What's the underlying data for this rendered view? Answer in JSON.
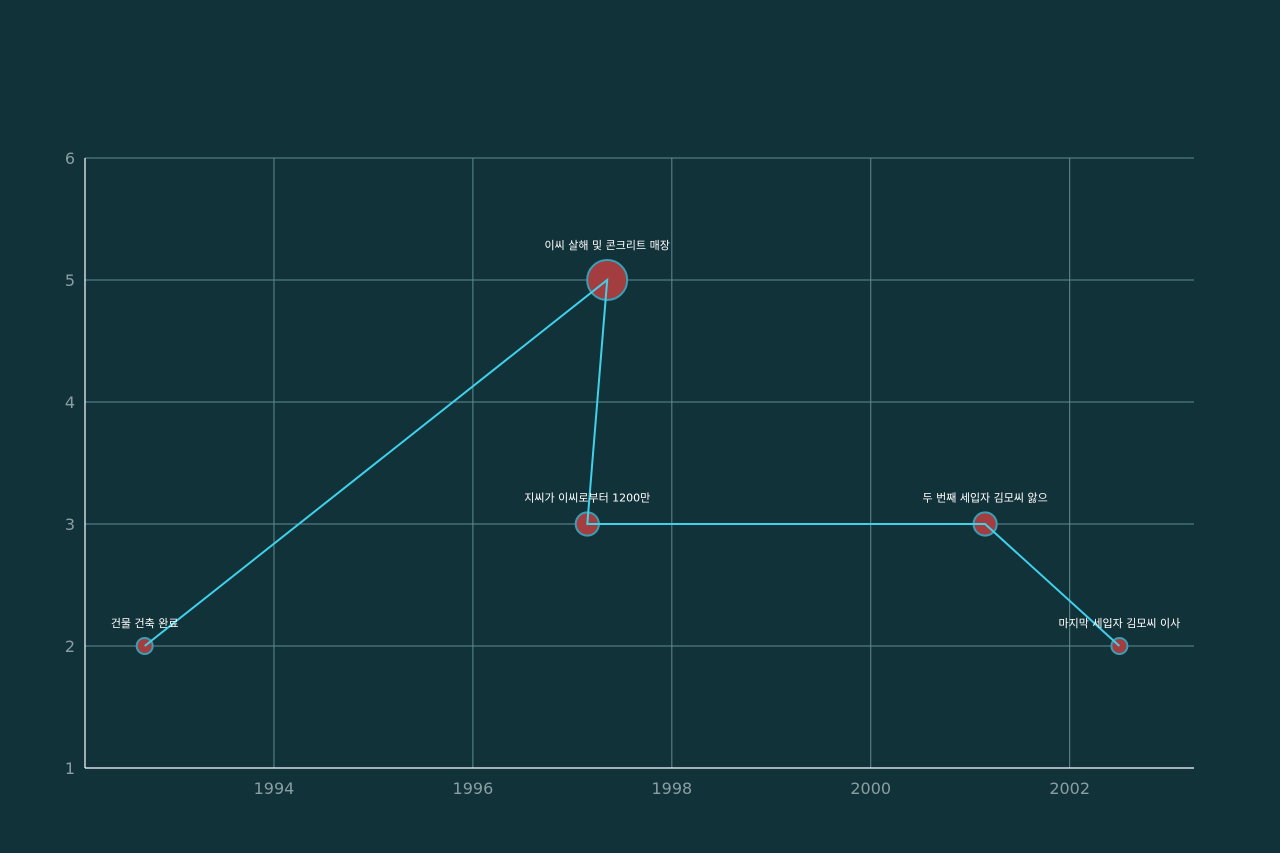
{
  "chart_data": {
    "type": "scatter",
    "title": "",
    "xlabel": "",
    "ylabel": "",
    "xlim": [
      1992.1,
      2003.25
    ],
    "ylim": [
      1,
      6
    ],
    "x_ticks": [
      1994,
      1996,
      1998,
      2000,
      2002
    ],
    "y_ticks": [
      1,
      2,
      3,
      4,
      5,
      6
    ],
    "grid": true,
    "connect_points": true,
    "points": [
      {
        "x": 1992.7,
        "y": 2,
        "size": 1,
        "label": "건물 건축 완료"
      },
      {
        "x": 1997.35,
        "y": 5,
        "size": 3,
        "label": "이씨 살해 및 콘크리트 매장"
      },
      {
        "x": 1997.15,
        "y": 3,
        "size": 1.6,
        "label": "지씨가 이씨로부터 1200만"
      },
      {
        "x": 2001.15,
        "y": 3,
        "size": 1.6,
        "label": "두 번째 세입자 김모씨 앓으"
      },
      {
        "x": 2002.5,
        "y": 2,
        "size": 1,
        "label": "마지막 세입자 김모씨 이사"
      }
    ],
    "colors": {
      "background": "#12323a",
      "grid": "#5f8c91",
      "axis": "#ffffff",
      "line": "#3fd0ea",
      "marker_fill": "#a33d3f",
      "marker_edge": "#3a9fb4"
    }
  }
}
